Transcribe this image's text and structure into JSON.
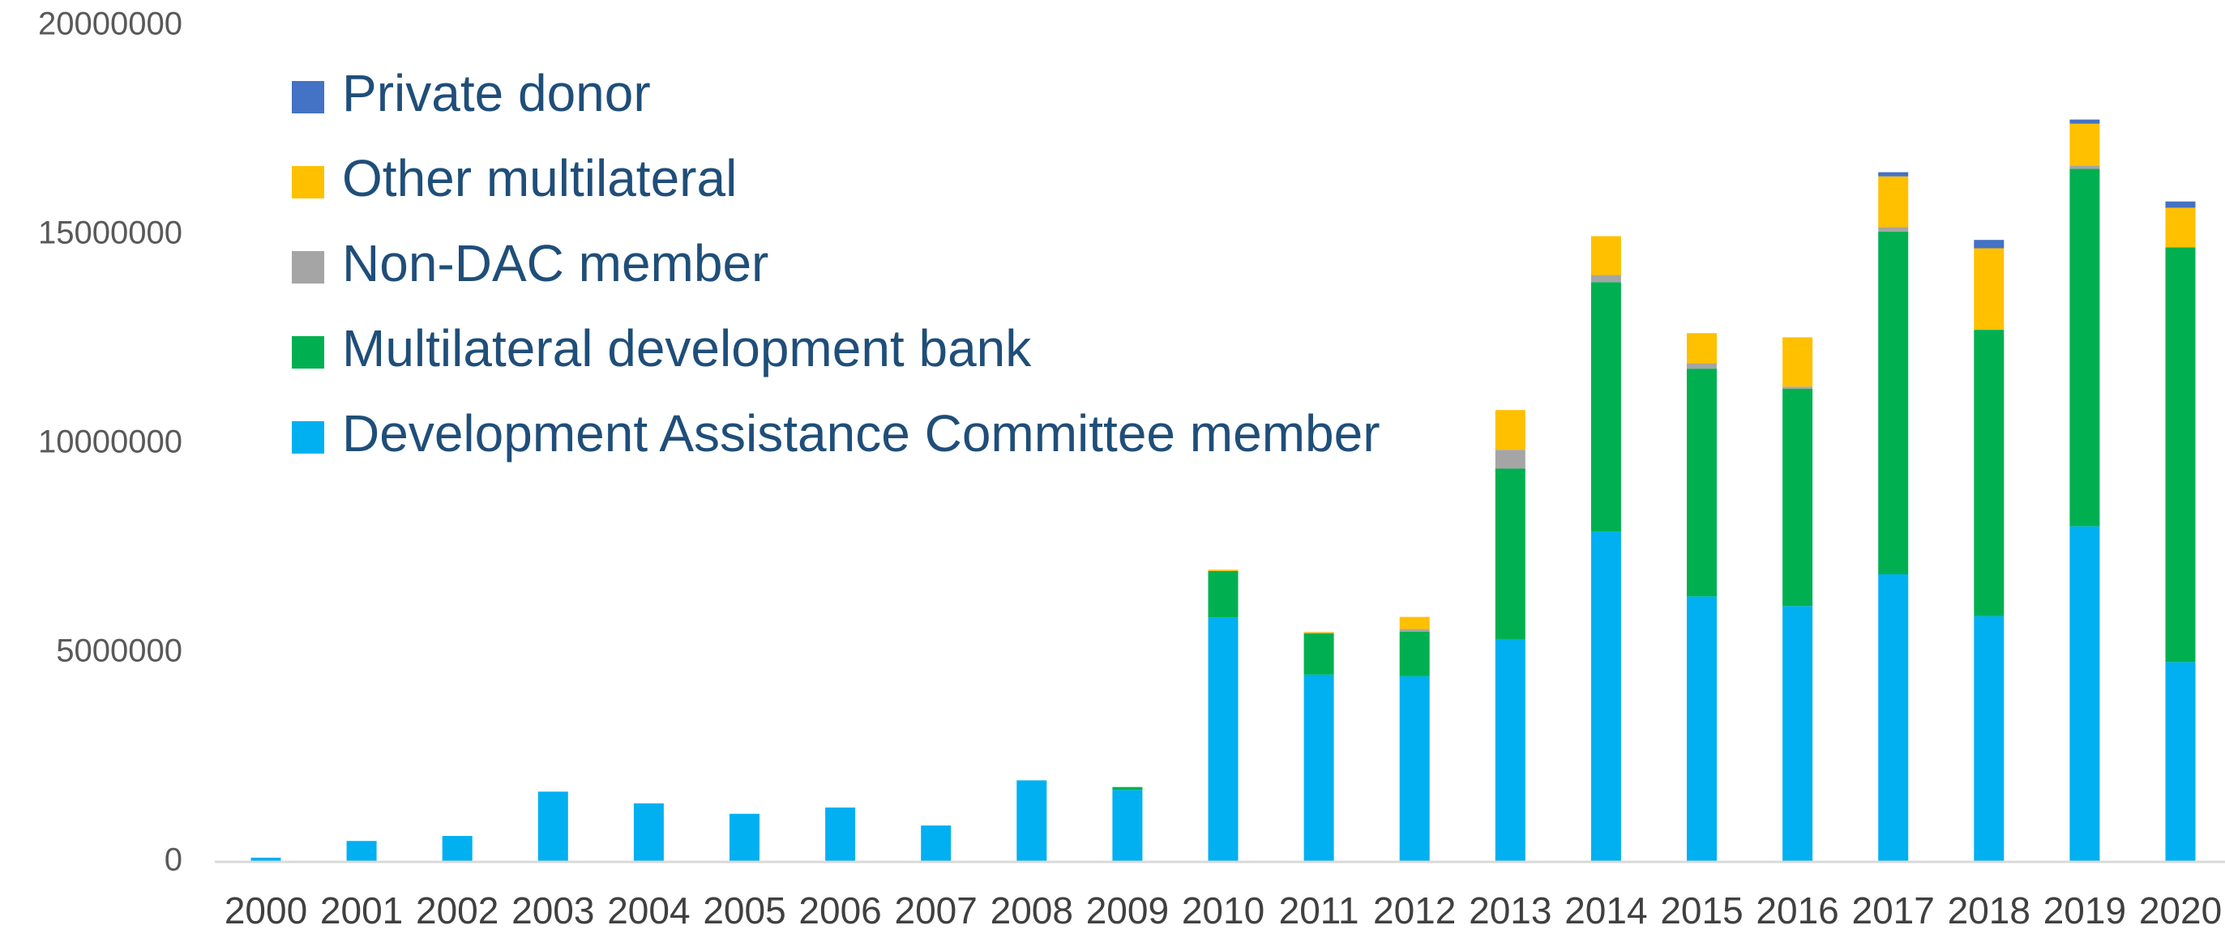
{
  "chart_data": {
    "type": "bar",
    "stacked": true,
    "categories": [
      "2000",
      "2001",
      "2002",
      "2003",
      "2004",
      "2005",
      "2006",
      "2007",
      "2008",
      "2009",
      "2010",
      "2011",
      "2012",
      "2013",
      "2014",
      "2015",
      "2016",
      "2017",
      "2018",
      "2019",
      "2020"
    ],
    "ylim": [
      0,
      20000000
    ],
    "yticks": [
      "0",
      "5000000",
      "10000000",
      "15000000",
      "20000000"
    ],
    "ytick_values": [
      0,
      5000000,
      10000000,
      15000000,
      20000000
    ],
    "grid": false,
    "legend_position": "top-left",
    "series": [
      {
        "name": "Development Assistance Committee member",
        "color": "#00b0f0",
        "values": [
          100000,
          500000,
          620000,
          1680000,
          1400000,
          1150000,
          1300000,
          870000,
          1950000,
          1720000,
          5850000,
          4480000,
          4440000,
          5330000,
          7900000,
          6350000,
          6120000,
          6880000,
          5880000,
          8030000,
          4780000
        ]
      },
      {
        "name": "Multilateral development bank",
        "color": "#00b050",
        "values": [
          0,
          0,
          0,
          0,
          0,
          0,
          0,
          0,
          0,
          70000,
          1110000,
          990000,
          1070000,
          4080000,
          5970000,
          5450000,
          5200000,
          8200000,
          6850000,
          8550000,
          9920000
        ]
      },
      {
        "name": "Non-DAC member",
        "color": "#a5a5a5",
        "values": [
          0,
          0,
          0,
          0,
          0,
          0,
          0,
          0,
          0,
          0,
          0,
          10000,
          60000,
          450000,
          170000,
          130000,
          50000,
          110000,
          0,
          80000,
          0
        ]
      },
      {
        "name": "Other multilateral",
        "color": "#ffc000",
        "values": [
          0,
          0,
          0,
          0,
          0,
          0,
          0,
          0,
          0,
          0,
          30000,
          20000,
          290000,
          950000,
          930000,
          720000,
          1180000,
          1210000,
          1950000,
          1000000,
          950000
        ]
      },
      {
        "name": "Private donor",
        "color": "#4472c4",
        "values": [
          0,
          0,
          0,
          0,
          0,
          0,
          0,
          0,
          0,
          0,
          0,
          0,
          0,
          0,
          0,
          0,
          0,
          100000,
          200000,
          100000,
          150000
        ]
      }
    ]
  }
}
